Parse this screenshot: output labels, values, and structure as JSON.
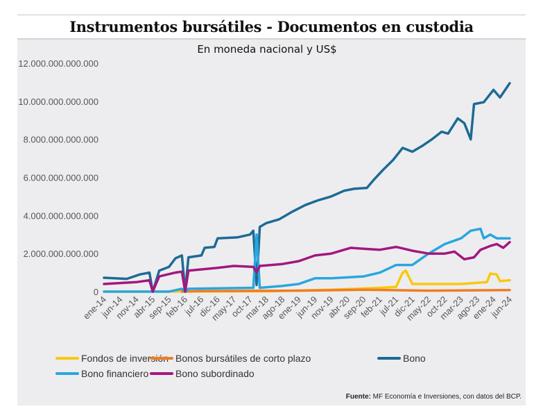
{
  "title": "Instrumentos bursátiles - Documentos en custodia",
  "source_label": "Fuente:",
  "source_text": " MF Economía e Inversiones, con datos del BCP.",
  "chart_data": {
    "type": "line",
    "title": "Instrumentos bursátiles - Documentos en custodia",
    "subtitle": "En moneda nacional y US$",
    "xlabel": "",
    "ylabel": "",
    "ylim": [
      0,
      12000000000000
    ],
    "xlim": [
      "2014-01",
      "2024-06"
    ],
    "grid": false,
    "legend": "bottom",
    "yticks": [
      0,
      2000000000000,
      4000000000000,
      6000000000000,
      8000000000000,
      10000000000000,
      12000000000000
    ],
    "ytick_labels": [
      "0",
      "2.000.000.000.000",
      "4.000.000.000.000",
      "6.000.000.000.000",
      "8.000.000.000.000",
      "10.000.000.000.000",
      "12.000.000.000.000"
    ],
    "xtick_labels": [
      "ene-14",
      "jun-14",
      "nov-14",
      "abr-15",
      "sep-15",
      "feb-16",
      "jul-16",
      "dic-16",
      "may-17",
      "oct-17",
      "mar-18",
      "ago-18",
      "ene-19",
      "jun-19",
      "nov-19",
      "abr-20",
      "sep-20",
      "feb-21",
      "jul-21",
      "dic-21",
      "may-22",
      "oct-22",
      "mar-23",
      "ago-23",
      "ene-24",
      "jun-24"
    ],
    "series": [
      {
        "name": "Fondos de inversión",
        "color": "#f9c80e",
        "points": [
          [
            "2014-01",
            0
          ],
          [
            "2018-03",
            20000000000.0
          ],
          [
            "2019-11",
            100000000000.0
          ],
          [
            "2021-02",
            200000000000.0
          ],
          [
            "2021-07",
            250000000000.0
          ],
          [
            "2021-09",
            1000000000000.0
          ],
          [
            "2021-10",
            1100000000000.0
          ],
          [
            "2021-12",
            400000000000.0
          ],
          [
            "2023-03",
            400000000000.0
          ],
          [
            "2023-11",
            500000000000.0
          ],
          [
            "2023-12",
            950000000000.0
          ],
          [
            "2024-02",
            900000000000.0
          ],
          [
            "2024-03",
            550000000000.0
          ],
          [
            "2024-06",
            600000000000.0
          ]
        ]
      },
      {
        "name": "Bonos bursátiles de corto plazo",
        "color": "#ef7d22",
        "points": [
          [
            "2016-01",
            0
          ],
          [
            "2016-07",
            30000000000.0
          ],
          [
            "2019-01",
            50000000000.0
          ],
          [
            "2020-09",
            100000000000.0
          ],
          [
            "2022-05",
            50000000000.0
          ],
          [
            "2024-06",
            80000000000.0
          ]
        ]
      },
      {
        "name": "Bono",
        "color": "#1d6a96",
        "points": [
          [
            "2014-01",
            730000000000.0
          ],
          [
            "2014-08",
            670000000000.0
          ],
          [
            "2014-12",
            900000000000.0
          ],
          [
            "2015-03",
            1000000000000.0
          ],
          [
            "2015-04",
            0
          ],
          [
            "2015-06",
            1100000000000.0
          ],
          [
            "2015-09",
            1300000000000.0
          ],
          [
            "2015-11",
            1750000000000.0
          ],
          [
            "2016-01",
            1900000000000.0
          ],
          [
            "2016-02",
            0
          ],
          [
            "2016-03",
            1800000000000.0
          ],
          [
            "2016-07",
            1900000000000.0
          ],
          [
            "2016-08",
            2300000000000.0
          ],
          [
            "2016-11",
            2350000000000.0
          ],
          [
            "2016-12",
            2800000000000.0
          ],
          [
            "2017-06",
            2850000000000.0
          ],
          [
            "2017-10",
            3000000000000.0
          ],
          [
            "2017-11",
            3200000000000.0
          ],
          [
            "2017-12",
            350000000000.0
          ],
          [
            "2018-01",
            3400000000000.0
          ],
          [
            "2018-03",
            3600000000000.0
          ],
          [
            "2018-07",
            3800000000000.0
          ],
          [
            "2018-11",
            4200000000000.0
          ],
          [
            "2019-03",
            4550000000000.0
          ],
          [
            "2019-07",
            4800000000000.0
          ],
          [
            "2019-11",
            5000000000000.0
          ],
          [
            "2020-03",
            5300000000000.0
          ],
          [
            "2020-06",
            5400000000000.0
          ],
          [
            "2020-10",
            5450000000000.0
          ],
          [
            "2020-12",
            5850000000000.0
          ],
          [
            "2021-03",
            6400000000000.0
          ],
          [
            "2021-06",
            6900000000000.0
          ],
          [
            "2021-09",
            7550000000000.0
          ],
          [
            "2021-12",
            7350000000000.0
          ],
          [
            "2022-03",
            7650000000000.0
          ],
          [
            "2022-06",
            8000000000000.0
          ],
          [
            "2022-09",
            8400000000000.0
          ],
          [
            "2022-11",
            8300000000000.0
          ],
          [
            "2023-02",
            9100000000000.0
          ],
          [
            "2023-04",
            8850000000000.0
          ],
          [
            "2023-06",
            8000000000000.0
          ],
          [
            "2023-07",
            9850000000000.0
          ],
          [
            "2023-10",
            9950000000000.0
          ],
          [
            "2024-01",
            10600000000000.0
          ],
          [
            "2024-03",
            10200000000000.0
          ],
          [
            "2024-06",
            10950000000000.0
          ]
        ]
      },
      {
        "name": "Bono financiero",
        "color": "#29a6de",
        "points": [
          [
            "2014-01",
            0
          ],
          [
            "2015-09",
            0
          ],
          [
            "2016-01",
            150000000000.0
          ],
          [
            "2016-02",
            0
          ],
          [
            "2016-03",
            150000000000.0
          ],
          [
            "2017-11",
            200000000000.0
          ],
          [
            "2017-12",
            3000000000000.0
          ],
          [
            "2018-01",
            200000000000.0
          ],
          [
            "2018-08",
            300000000000.0
          ],
          [
            "2019-01",
            400000000000.0
          ],
          [
            "2019-06",
            700000000000.0
          ],
          [
            "2019-11",
            700000000000.0
          ],
          [
            "2020-09",
            800000000000.0
          ],
          [
            "2021-02",
            1000000000000.0
          ],
          [
            "2021-07",
            1400000000000.0
          ],
          [
            "2021-12",
            1400000000000.0
          ],
          [
            "2022-05",
            2000000000000.0
          ],
          [
            "2022-10",
            2500000000000.0
          ],
          [
            "2023-03",
            2800000000000.0
          ],
          [
            "2023-06",
            3200000000000.0
          ],
          [
            "2023-09",
            3300000000000.0
          ],
          [
            "2023-10",
            2800000000000.0
          ],
          [
            "2023-12",
            3000000000000.0
          ],
          [
            "2024-02",
            2800000000000.0
          ],
          [
            "2024-06",
            2800000000000.0
          ]
        ]
      },
      {
        "name": "Bono subordinado",
        "color": "#a3177f",
        "points": [
          [
            "2014-01",
            400000000000.0
          ],
          [
            "2014-11",
            500000000000.0
          ],
          [
            "2015-03",
            600000000000.0
          ],
          [
            "2015-04",
            0
          ],
          [
            "2015-06",
            800000000000.0
          ],
          [
            "2015-11",
            1000000000000.0
          ],
          [
            "2016-01",
            1050000000000.0
          ],
          [
            "2016-02",
            0
          ],
          [
            "2016-03",
            1100000000000.0
          ],
          [
            "2016-12",
            1250000000000.0
          ],
          [
            "2017-05",
            1350000000000.0
          ],
          [
            "2017-11",
            1300000000000.0
          ],
          [
            "2017-12",
            1000000000000.0
          ],
          [
            "2018-01",
            1350000000000.0
          ],
          [
            "2018-08",
            1450000000000.0
          ],
          [
            "2019-01",
            1600000000000.0
          ],
          [
            "2019-06",
            1900000000000.0
          ],
          [
            "2019-11",
            2000000000000.0
          ],
          [
            "2020-05",
            2300000000000.0
          ],
          [
            "2020-09",
            2250000000000.0
          ],
          [
            "2021-02",
            2200000000000.0
          ],
          [
            "2021-07",
            2350000000000.0
          ],
          [
            "2021-12",
            2150000000000.0
          ],
          [
            "2022-05",
            2000000000000.0
          ],
          [
            "2022-10",
            2000000000000.0
          ],
          [
            "2023-01",
            2100000000000.0
          ],
          [
            "2023-04",
            1700000000000.0
          ],
          [
            "2023-07",
            1800000000000.0
          ],
          [
            "2023-09",
            2200000000000.0
          ],
          [
            "2023-12",
            2400000000000.0
          ],
          [
            "2024-02",
            2500000000000.0
          ],
          [
            "2024-04",
            2300000000000.0
          ],
          [
            "2024-06",
            2600000000000.0
          ]
        ]
      }
    ]
  }
}
